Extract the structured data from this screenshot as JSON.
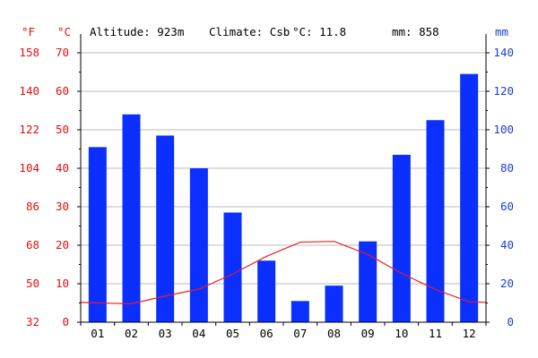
{
  "header": {
    "altitude": "Altitude: 923m",
    "climate": "Climate: Csb",
    "temp": "°C: 11.8",
    "precip": "mm: 858"
  },
  "colors": {
    "temp_axis": "#e01010",
    "precip_axis": "#1a3fd0",
    "bar": "#0a2fff",
    "line": "#e82020",
    "grid": "#bbbbbb",
    "text": "#000000"
  },
  "chart_data": {
    "type": "bar",
    "categories": [
      "01",
      "02",
      "03",
      "04",
      "05",
      "06",
      "07",
      "08",
      "09",
      "10",
      "11",
      "12"
    ],
    "series": [
      {
        "type": "bar",
        "axis": "right",
        "values": [
          91,
          108,
          97,
          80,
          57,
          32,
          11,
          19,
          42,
          87,
          105,
          129
        ]
      },
      {
        "type": "line",
        "axis": "left",
        "values": [
          5.0,
          4.8,
          6.8,
          8.6,
          12.5,
          17.1,
          20.8,
          21.0,
          17.6,
          12.7,
          8.5,
          5.3
        ]
      }
    ],
    "left_axis": {
      "unit": "°C",
      "ticks": [
        "0",
        "10",
        "20",
        "30",
        "40",
        "50",
        "60",
        "70"
      ],
      "range": [
        0,
        75
      ]
    },
    "far_left_axis": {
      "unit": "°F",
      "ticks": [
        "32",
        "50",
        "68",
        "86",
        "104",
        "122",
        "140",
        "158"
      ]
    },
    "right_axis": {
      "unit": "mm",
      "ticks": [
        "0",
        "20",
        "40",
        "60",
        "80",
        "100",
        "120",
        "140"
      ],
      "range": [
        0,
        150
      ]
    },
    "grid": true
  }
}
